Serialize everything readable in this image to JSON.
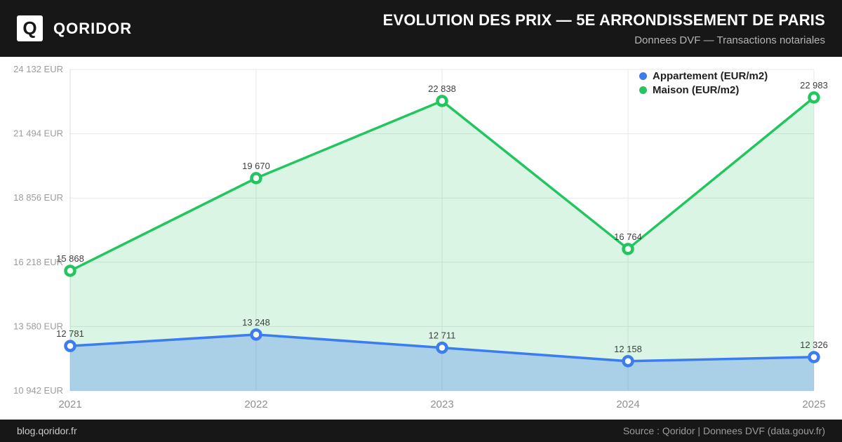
{
  "header": {
    "logo_letter": "Q",
    "brand": "QORIDOR",
    "title": "EVOLUTION DES PRIX — 5E ARRONDISSEMENT DE PARIS",
    "subtitle": "Donnees DVF — Transactions notariales"
  },
  "footer": {
    "left": "blog.qoridor.fr",
    "right": "Source : Qoridor | Donnees DVF (data.gouv.fr)"
  },
  "chart_data": {
    "type": "line",
    "title": "Evolution des prix — 5e arrondissement de Paris",
    "x": [
      2021,
      2022,
      2023,
      2024,
      2025
    ],
    "x_tick_labels": [
      "2021",
      "2022",
      "2023",
      "2024",
      "2025"
    ],
    "series": [
      {
        "name": "Appartement (EUR/m2)",
        "values": [
          12781,
          13248,
          12711,
          12158,
          12326
        ],
        "color": "#3b7cf0",
        "fill": "rgba(59,124,240,0.30)"
      },
      {
        "name": "Maison (EUR/m2)",
        "values": [
          15868,
          19670,
          22838,
          16764,
          22983
        ],
        "color": "#22c55e",
        "fill": "rgba(34,197,94,0.17)"
      }
    ],
    "y_ticks": [
      10942,
      13580,
      16218,
      18856,
      21494,
      24132
    ],
    "y_tick_suffix": " EUR",
    "ylim": [
      10942,
      24132
    ],
    "grid": true,
    "legend_position": "top-right",
    "colors": {
      "grid": "#e7e7e7",
      "axis": "#d9d9d9",
      "point_ring_center": "#ffffff"
    }
  }
}
